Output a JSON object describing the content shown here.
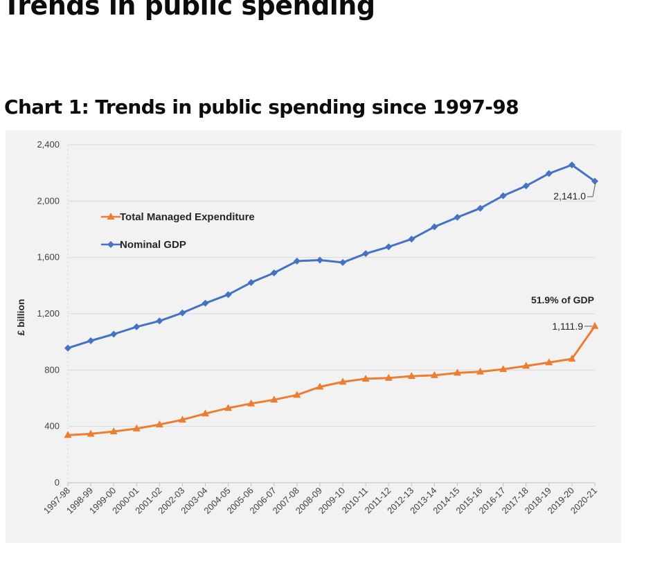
{
  "page": {
    "title": "Trends in public spending",
    "chart_heading": "Chart 1: Trends in public spending since 1997-98"
  },
  "chart_data": {
    "type": "line",
    "title": "",
    "xlabel": "",
    "ylabel": "£ billion",
    "ylim": [
      0,
      2400
    ],
    "yticks": [
      0,
      400,
      800,
      1200,
      1600,
      2000,
      2400
    ],
    "ytick_labels": [
      "0",
      "400",
      "800",
      "1,200",
      "1,600",
      "2,000",
      "2,400"
    ],
    "grid": true,
    "legend_position": "top-left",
    "categories": [
      "1997-98",
      "1998-99",
      "1999-00",
      "2000-01",
      "2001-02",
      "2002-03",
      "2003-04",
      "2004-05",
      "2005-06",
      "2006-07",
      "2007-08",
      "2008-09",
      "2009-10",
      "2010-11",
      "2011-12",
      "2012-13",
      "2013-14",
      "2014-15",
      "2015-16",
      "2016-17",
      "2017-18",
      "2018-19",
      "2019-20",
      "2020-21"
    ],
    "series": [
      {
        "name": "Total Managed Expenditure",
        "color": "#ed7d31",
        "marker": "triangle",
        "values": [
          338,
          347,
          364,
          384,
          413,
          447,
          491,
          530,
          562,
          589,
          623,
          681,
          716,
          738,
          744,
          757,
          763,
          780,
          788,
          806,
          829,
          854,
          880,
          1111.9
        ]
      },
      {
        "name": "Nominal GDP",
        "color": "#4472c4",
        "marker": "diamond",
        "values": [
          956,
          1008,
          1055,
          1107,
          1149,
          1206,
          1275,
          1336,
          1422,
          1490,
          1574,
          1581,
          1564,
          1627,
          1675,
          1730,
          1817,
          1885,
          1949,
          2038,
          2108,
          2196,
          2257,
          2141.0
        ]
      }
    ],
    "annotations": {
      "gdp_last": "2,141.0",
      "tme_last": "1,111.9",
      "share": "51.9% of GDP"
    }
  }
}
